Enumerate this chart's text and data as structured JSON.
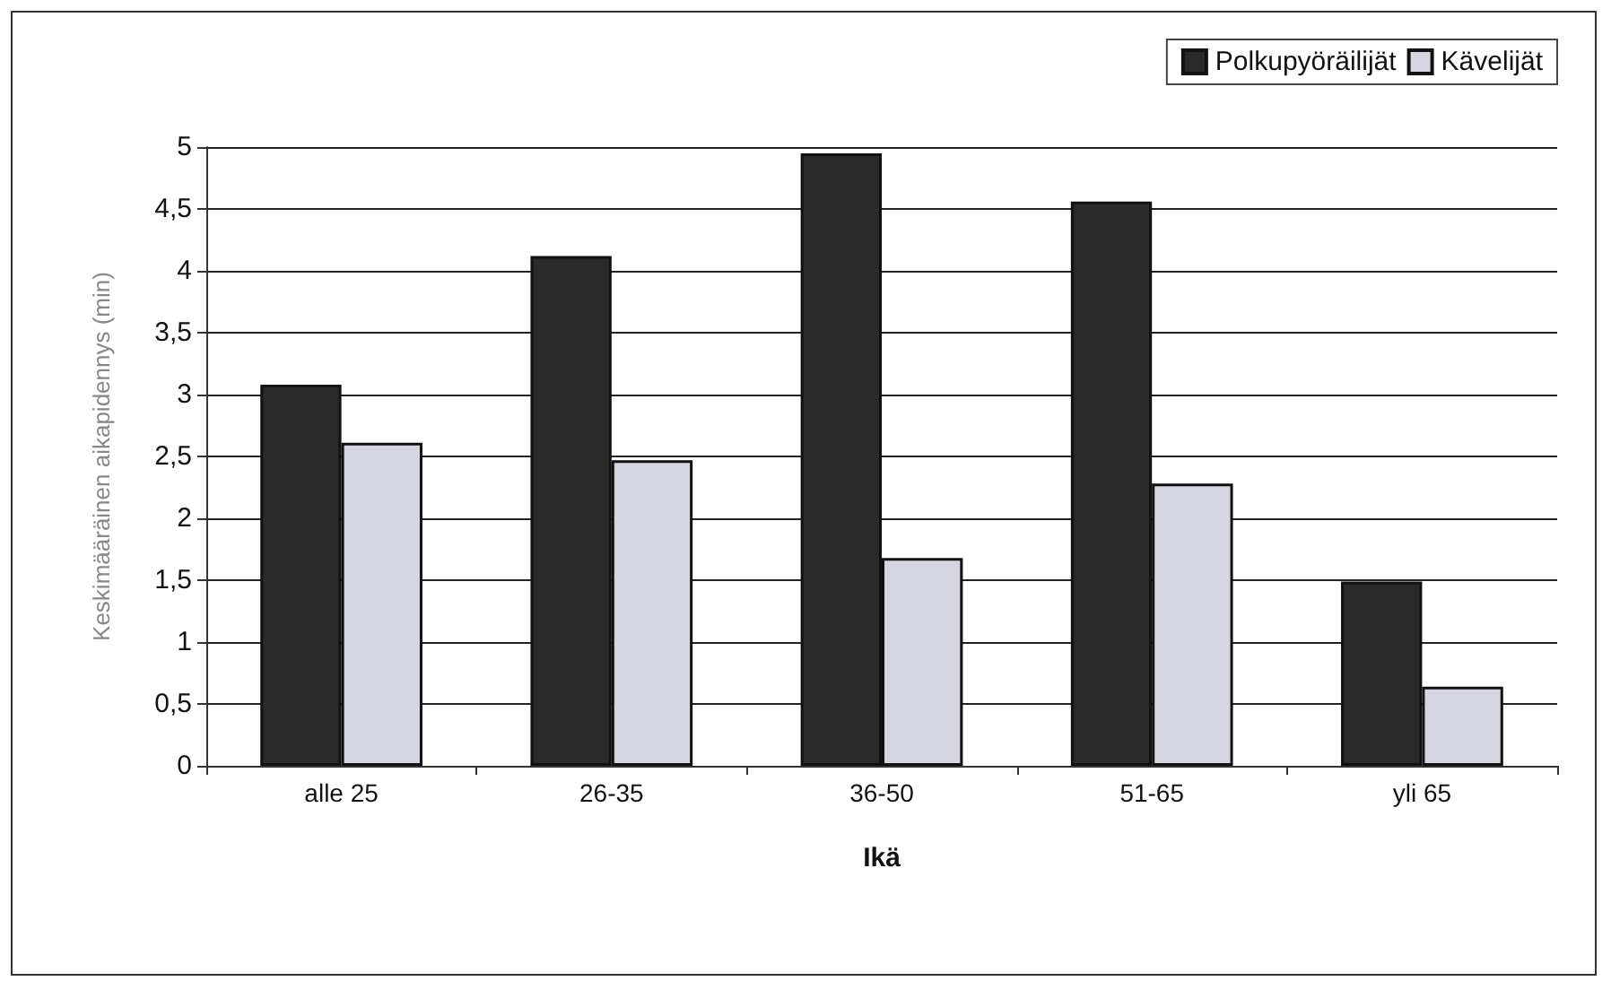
{
  "chart_data": {
    "type": "bar",
    "xlabel": "Ikä",
    "ylabel": "Keskimääräinen aikapidennys (min)",
    "categories": [
      "alle 25",
      "26-35",
      "36-50",
      "51-65",
      "yli 65"
    ],
    "series": [
      {
        "name": "Polkupyöräilijät",
        "color": "#2a2a2a",
        "values": [
          3.08,
          4.12,
          4.95,
          4.56,
          1.49
        ]
      },
      {
        "name": "Kävelijät",
        "color": "#d6d6e2",
        "values": [
          2.61,
          2.47,
          1.68,
          2.28,
          0.64
        ]
      }
    ],
    "ylim": [
      0,
      5
    ],
    "yticks": [
      {
        "value": 0,
        "label": "0"
      },
      {
        "value": 0.5,
        "label": "0,5"
      },
      {
        "value": 1,
        "label": "1"
      },
      {
        "value": 1.5,
        "label": "1,5"
      },
      {
        "value": 2,
        "label": "2"
      },
      {
        "value": 2.5,
        "label": "2,5"
      },
      {
        "value": 3,
        "label": "3"
      },
      {
        "value": 3.5,
        "label": "3,5"
      },
      {
        "value": 4,
        "label": "4"
      },
      {
        "value": 4.5,
        "label": "4,5"
      },
      {
        "value": 5,
        "label": "5"
      }
    ],
    "grid": "y",
    "legend": "top right"
  }
}
